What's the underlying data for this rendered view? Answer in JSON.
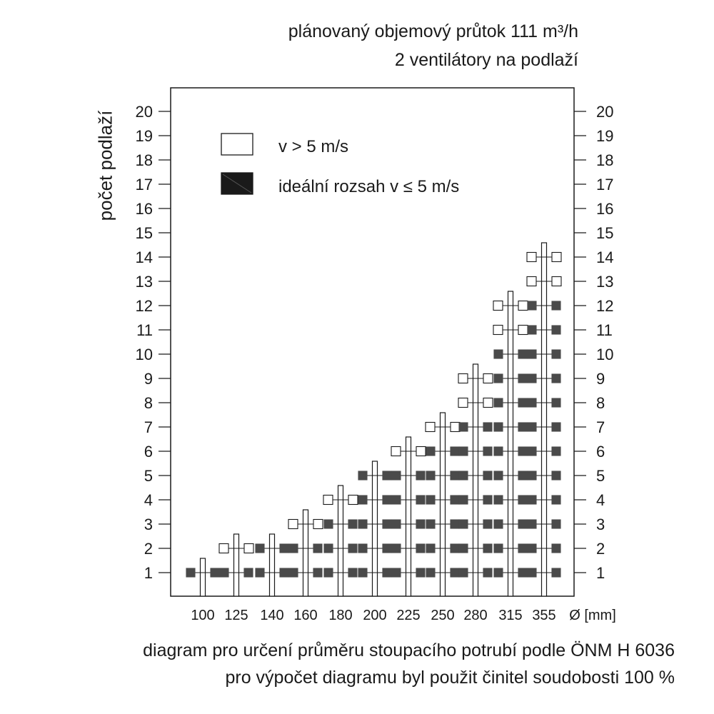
{
  "header": {
    "line1": "plánovaný objemový průtok 111 m³/h",
    "line2": "2 ventilátory na podlaží"
  },
  "footer": {
    "line1": "diagram pro určení průměru stoupacího potrubí podle ÖNM H 6036",
    "line2": "pro výpočet diagramu byl použit činitel soudobosti 100 %"
  },
  "chart_data": {
    "type": "scatter",
    "ylabel": "počet podlaží",
    "xlabel": "Ø [mm]",
    "categories": [
      "100",
      "125",
      "140",
      "160",
      "180",
      "200",
      "225",
      "250",
      "280",
      "315",
      "355"
    ],
    "y_ticks": [
      1,
      2,
      3,
      4,
      5,
      6,
      7,
      8,
      9,
      10,
      11,
      12,
      13,
      14,
      15,
      16,
      17,
      18,
      19,
      20
    ],
    "ylim": [
      1,
      20
    ],
    "legend": [
      {
        "label": "v > 5 m/s",
        "style": "open"
      },
      {
        "label": "ideální rozsah v ≤ 5 m/s",
        "style": "filled"
      }
    ],
    "legend_position": "top-left",
    "colors": {
      "filled": "#4a4a4a",
      "open": "#ffffff",
      "line": "#1a1a1a"
    },
    "series": [
      {
        "diameter": "100",
        "max_floors": 1,
        "ideal_up_to": 1
      },
      {
        "diameter": "125",
        "max_floors": 2,
        "ideal_up_to": 1
      },
      {
        "diameter": "140",
        "max_floors": 2,
        "ideal_up_to": 2
      },
      {
        "diameter": "160",
        "max_floors": 3,
        "ideal_up_to": 2
      },
      {
        "diameter": "180",
        "max_floors": 4,
        "ideal_up_to": 3
      },
      {
        "diameter": "200",
        "max_floors": 5,
        "ideal_up_to": 5
      },
      {
        "diameter": "225",
        "max_floors": 6,
        "ideal_up_to": 5
      },
      {
        "diameter": "250",
        "max_floors": 7,
        "ideal_up_to": 6
      },
      {
        "diameter": "280",
        "max_floors": 9,
        "ideal_up_to": 7
      },
      {
        "diameter": "315",
        "max_floors": 12,
        "ideal_up_to": 10
      },
      {
        "diameter": "355",
        "max_floors": 14,
        "ideal_up_to": 12
      }
    ]
  }
}
